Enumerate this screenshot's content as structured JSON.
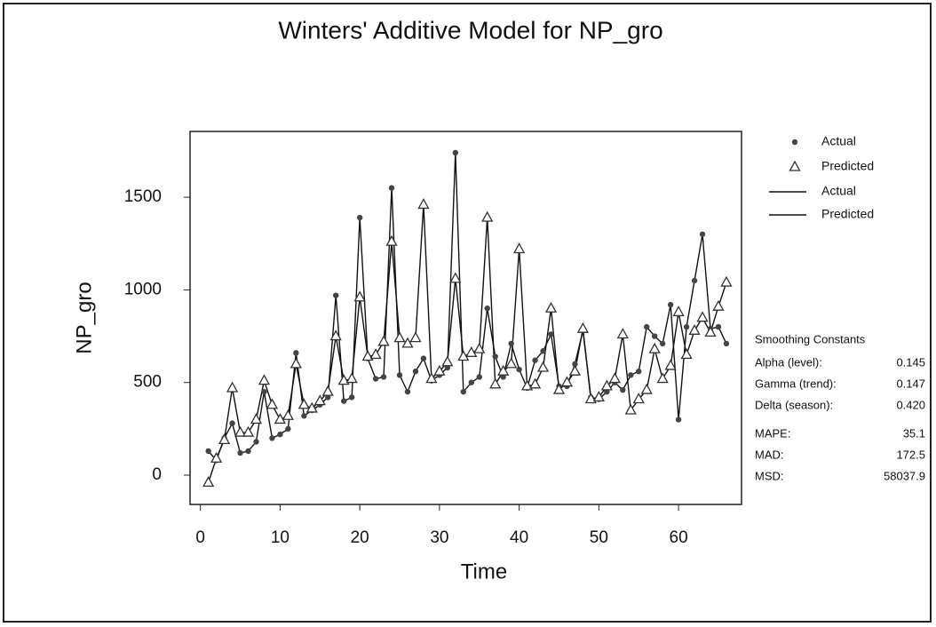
{
  "chart_data": {
    "type": "line",
    "title": "Winters' Additive Model for NP_gro",
    "x_label": "Time",
    "y_label": "NP_gro",
    "x": [
      1,
      2,
      3,
      4,
      5,
      6,
      7,
      8,
      9,
      10,
      11,
      12,
      13,
      14,
      15,
      16,
      17,
      18,
      19,
      20,
      21,
      22,
      23,
      24,
      25,
      26,
      27,
      28,
      29,
      30,
      31,
      32,
      33,
      34,
      35,
      36,
      37,
      38,
      39,
      40,
      41,
      42,
      43,
      44,
      45,
      46,
      47,
      48,
      49,
      50,
      51,
      52,
      53,
      54,
      55,
      56,
      57,
      58,
      59,
      60,
      61,
      62,
      63,
      64,
      65,
      66
    ],
    "series": [
      {
        "name": "Actual",
        "color": "#111111",
        "marker": "circle",
        "values": [
          130,
          80,
          200,
          280,
          120,
          130,
          180,
          450,
          200,
          220,
          250,
          660,
          320,
          350,
          380,
          420,
          970,
          400,
          420,
          1390,
          630,
          520,
          530,
          1550,
          540,
          450,
          560,
          630,
          510,
          540,
          580,
          1740,
          450,
          500,
          530,
          900,
          640,
          530,
          710,
          570,
          470,
          620,
          670,
          760,
          480,
          480,
          600,
          780,
          420,
          410,
          450,
          500,
          460,
          540,
          560,
          800,
          750,
          710,
          920,
          300,
          800,
          1050,
          1300,
          790,
          800,
          710
        ]
      },
      {
        "name": "Predicted",
        "color": "#111111",
        "marker": "triangle",
        "values": [
          -40,
          90,
          190,
          470,
          230,
          230,
          300,
          510,
          380,
          300,
          320,
          600,
          380,
          360,
          400,
          450,
          750,
          510,
          520,
          960,
          640,
          650,
          720,
          1260,
          740,
          710,
          740,
          1460,
          520,
          560,
          610,
          1060,
          640,
          660,
          680,
          1390,
          490,
          560,
          600,
          1220,
          480,
          490,
          580,
          900,
          460,
          500,
          560,
          790,
          410,
          420,
          480,
          520,
          760,
          350,
          410,
          460,
          680,
          520,
          590,
          880,
          650,
          780,
          850,
          770,
          910,
          1040
        ]
      }
    ],
    "xlim": [
      -1.3,
      67.9
    ],
    "ylim": [
      -158,
      1855
    ],
    "xticks": [
      0,
      10,
      20,
      30,
      40,
      50,
      60
    ],
    "yticks": [
      0,
      500,
      1000,
      1500
    ],
    "smoothing_title": "Smoothing Constants",
    "stats": [
      {
        "label": "Alpha (level):",
        "value": "0.145"
      },
      {
        "label": "Gamma (trend):",
        "value": "0.147"
      },
      {
        "label": "Delta (season):",
        "value": "0.420"
      },
      {
        "label": "MAPE:",
        "value": "35.1"
      },
      {
        "label": "MAD:",
        "value": "172.5"
      },
      {
        "label": "MSD:",
        "value": "58037.9"
      }
    ]
  }
}
